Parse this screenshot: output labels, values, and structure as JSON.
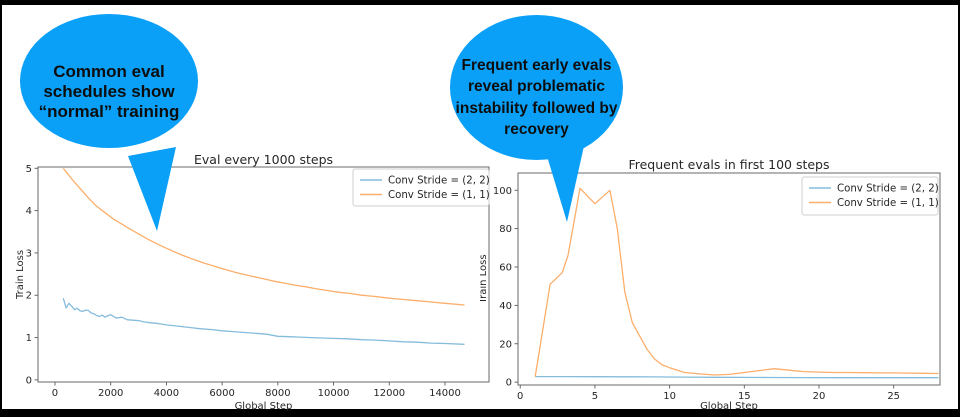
{
  "bubble_color": "#0AA0F8",
  "bubbles": [
    {
      "lines": [
        "Common eval",
        "schedules show",
        "“normal” training"
      ]
    },
    {
      "lines": [
        "Frequent early evals",
        "reveal problematic",
        "instability followed by",
        "recovery"
      ]
    }
  ],
  "chart_data": [
    {
      "type": "line",
      "title": "Eval every 1000 steps",
      "xlabel": "Global Step",
      "ylabel": "Train Loss",
      "xlim": [
        -610,
        15580
      ],
      "ylim": [
        -0.05,
        5.03
      ],
      "xticks": [
        0,
        2000,
        4000,
        6000,
        8000,
        10000,
        12000,
        14000
      ],
      "yticks": [
        0,
        1,
        2,
        3,
        4,
        5
      ],
      "grid": false,
      "legend_position": "upper right",
      "series": [
        {
          "name": "Conv Stride =  (2, 2)",
          "color": "#85bcdc",
          "x": [
            300,
            400,
            500,
            600,
            700,
            800,
            900,
            1000,
            1100,
            1200,
            1300,
            1400,
            1500,
            1600,
            1700,
            1800,
            1900,
            2000,
            2200,
            2400,
            2600,
            2800,
            3000,
            3200,
            3400,
            3600,
            3800,
            4000,
            4400,
            4800,
            5200,
            5600,
            6000,
            6400,
            6800,
            7200,
            7600,
            8000,
            8400,
            8800,
            9200,
            9600,
            10000,
            10500,
            11000,
            11500,
            12000,
            12500,
            13000,
            13500,
            14000,
            14700
          ],
          "y": [
            1.93,
            1.7,
            1.81,
            1.74,
            1.66,
            1.69,
            1.63,
            1.62,
            1.65,
            1.64,
            1.58,
            1.56,
            1.52,
            1.5,
            1.53,
            1.48,
            1.52,
            1.54,
            1.46,
            1.48,
            1.42,
            1.41,
            1.4,
            1.37,
            1.35,
            1.34,
            1.32,
            1.3,
            1.27,
            1.24,
            1.21,
            1.19,
            1.16,
            1.14,
            1.12,
            1.1,
            1.08,
            1.03,
            1.02,
            1.01,
            1.0,
            0.99,
            0.98,
            0.97,
            0.95,
            0.94,
            0.92,
            0.9,
            0.89,
            0.87,
            0.86,
            0.84
          ]
        },
        {
          "name": "Conv Stride =  (1, 1)",
          "color": "#fdae6b",
          "x": [
            300,
            600,
            900,
            1200,
            1500,
            1800,
            2100,
            2400,
            2700,
            3000,
            3400,
            3800,
            4200,
            4600,
            5000,
            5400,
            5800,
            6200,
            6600,
            7000,
            7400,
            7800,
            8200,
            8600,
            9000,
            9400,
            9800,
            10200,
            10600,
            11000,
            11500,
            12000,
            12500,
            13000,
            13500,
            14000,
            14700
          ],
          "y": [
            5.0,
            4.75,
            4.52,
            4.3,
            4.1,
            3.95,
            3.8,
            3.68,
            3.56,
            3.45,
            3.3,
            3.17,
            3.05,
            2.94,
            2.84,
            2.75,
            2.67,
            2.59,
            2.52,
            2.46,
            2.4,
            2.34,
            2.29,
            2.24,
            2.2,
            2.15,
            2.11,
            2.07,
            2.04,
            2.0,
            1.97,
            1.93,
            1.9,
            1.87,
            1.84,
            1.81,
            1.77
          ]
        }
      ]
    },
    {
      "type": "line",
      "title": "Frequent evals in first 100 steps",
      "xlabel": "Global Step",
      "ylabel": "Train Loss",
      "xlim": [
        -0.15,
        28.1
      ],
      "ylim": [
        -1.5,
        109
      ],
      "xticks": [
        0,
        5,
        10,
        15,
        20,
        25
      ],
      "yticks": [
        0,
        20,
        40,
        60,
        80,
        100
      ],
      "grid": false,
      "legend_position": "upper right",
      "series": [
        {
          "name": "Conv Stride =  (2, 2)",
          "color": "#85bcdc",
          "x": [
            1,
            3,
            5,
            7,
            9,
            11,
            13,
            15,
            17,
            19,
            21,
            23,
            25,
            28
          ],
          "y": [
            2.9,
            2.9,
            2.85,
            2.8,
            2.7,
            2.6,
            2.5,
            2.45,
            2.4,
            2.35,
            2.3,
            2.3,
            2.3,
            2.3
          ]
        },
        {
          "name": "Conv Stride =  (1, 1)",
          "color": "#fdae6b",
          "x": [
            1,
            2,
            2.4,
            2.8,
            3.2,
            4,
            5,
            6,
            6.5,
            7,
            7.5,
            8,
            8.5,
            9,
            9.5,
            10,
            11,
            12,
            13,
            14,
            15,
            16,
            17,
            18,
            19,
            20,
            21,
            22,
            23,
            24,
            25,
            26,
            27,
            28
          ],
          "y": [
            2.9,
            51,
            54,
            57,
            66,
            101,
            93,
            100,
            80,
            47,
            31,
            24,
            17,
            12,
            9,
            7.5,
            5,
            4.3,
            3.7,
            4,
            5,
            6,
            7,
            6.2,
            5.5,
            5.2,
            5,
            5,
            4.9,
            4.8,
            4.8,
            4.7,
            4.6,
            4.5
          ]
        }
      ]
    }
  ]
}
